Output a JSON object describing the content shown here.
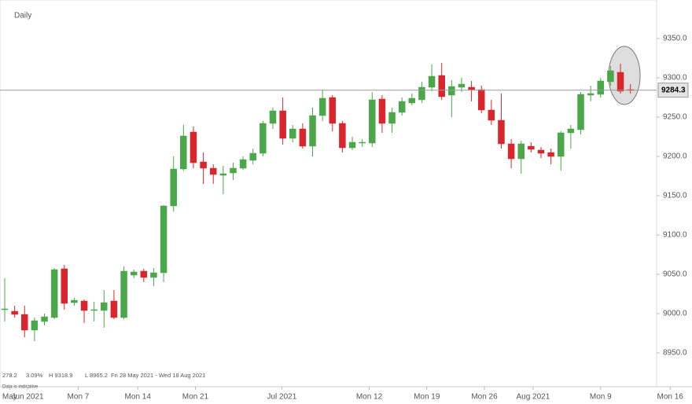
{
  "chart_data": {
    "type": "candlestick",
    "title": "Daily",
    "up_color": "#4aa84a",
    "down_color": "#d9262c",
    "ylim": [
      8907,
      9399
    ],
    "yticks": [
      {
        "value": 9350,
        "label": "9350.0"
      },
      {
        "value": 9300,
        "label": "9300.0"
      },
      {
        "value": 9250,
        "label": "9250.0"
      },
      {
        "value": 9200,
        "label": "9200.0"
      },
      {
        "value": 9150,
        "label": "9150.0"
      },
      {
        "value": 9100,
        "label": "9100.0"
      },
      {
        "value": 9050,
        "label": "9050.0"
      },
      {
        "value": 9000,
        "label": "9000.0"
      },
      {
        "value": 8950,
        "label": "8950.0"
      }
    ],
    "xlim": [
      -0.475,
      65.64
    ],
    "xticks": [
      {
        "value": 0.5,
        "label": "May"
      },
      {
        "value": 2.3,
        "label": "Jun 2021"
      },
      {
        "value": 7.4,
        "label": "Mon 7"
      },
      {
        "value": 13.4,
        "label": "Mon 14"
      },
      {
        "value": 19.2,
        "label": "Mon 21"
      },
      {
        "value": 27.9,
        "label": "Jul 2021"
      },
      {
        "value": 36.7,
        "label": "Mon 12"
      },
      {
        "value": 42.5,
        "label": "Mon 19"
      },
      {
        "value": 48.3,
        "label": "Mon 26"
      },
      {
        "value": 53.2,
        "label": "Aug 2021"
      },
      {
        "value": 60.0,
        "label": "Mon 9"
      },
      {
        "value": 67.0,
        "label": "Mon 16"
      }
    ],
    "open": [
      9005,
      9003,
      8999,
      8979,
      8990,
      8995,
      9057,
      9014,
      9016,
      9004,
      9004,
      9016,
      8995,
      9049,
      9054,
      9046,
      9052,
      9137,
      9184,
      9231,
      9193,
      9185,
      9176,
      9179,
      9185,
      9195,
      9204,
      9242,
      9258,
      9223,
      9235,
      9213,
      9252,
      9275,
      9242,
      9211,
      9217,
      9217,
      9273,
      9242,
      9256,
      9268,
      9272,
      9288,
      9303,
      9278,
      9288,
      9288,
      9285,
      9259,
      9246,
      9216,
      9197,
      9213,
      9208,
      9205,
      9200,
      9230,
      9234,
      9278,
      9279,
      9295,
      9307,
      9285
    ],
    "high": [
      9045,
      9010,
      9010,
      8995,
      9000,
      9058,
      9062,
      9020,
      9018,
      9015,
      9030,
      9030,
      9060,
      9056,
      9057,
      9058,
      9138,
      9200,
      9240,
      9238,
      9205,
      9190,
      9188,
      9192,
      9200,
      9210,
      9245,
      9262,
      9275,
      9240,
      9242,
      9262,
      9285,
      9278,
      9245,
      9225,
      9222,
      9282,
      9278,
      9262,
      9275,
      9280,
      9295,
      9317,
      9319,
      9297,
      9300,
      9296,
      9290,
      9272,
      9280,
      9222,
      9220,
      9218,
      9212,
      9210,
      9232,
      9240,
      9282,
      9290,
      9300,
      9315,
      9318,
      9292
    ],
    "low": [
      8990,
      8995,
      8970,
      8965,
      8985,
      8993,
      9005,
      9010,
      8988,
      8990,
      8982,
      8993,
      8993,
      9045,
      9040,
      9035,
      9040,
      9130,
      9182,
      9185,
      9165,
      9165,
      9152,
      9170,
      9183,
      9190,
      9200,
      9235,
      9215,
      9218,
      9210,
      9200,
      9245,
      9232,
      9205,
      9208,
      9212,
      9212,
      9230,
      9230,
      9252,
      9265,
      9268,
      9283,
      9272,
      9250,
      9282,
      9270,
      9255,
      9240,
      9210,
      9185,
      9178,
      9205,
      9198,
      9190,
      9182,
      9210,
      9228,
      9270,
      9275,
      9290,
      9280,
      9280
    ],
    "close": [
      9006,
      8999,
      8979,
      8991,
      8996,
      9056,
      9013,
      9017,
      9004,
      9005,
      9014,
      8995,
      9054,
      9053,
      9046,
      9052,
      9137,
      9184,
      9226,
      9192,
      9185,
      9177,
      9178,
      9185,
      9196,
      9204,
      9242,
      9258,
      9223,
      9235,
      9213,
      9252,
      9274,
      9242,
      9211,
      9218,
      9218,
      9272,
      9242,
      9256,
      9270,
      9274,
      9288,
      9302,
      9276,
      9289,
      9292,
      9285,
      9259,
      9246,
      9216,
      9197,
      9216,
      9209,
      9204,
      9200,
      9230,
      9235,
      9279,
      9280,
      9296,
      9309,
      9283,
      9284.3
    ],
    "last_price": 9284.3,
    "stats": [
      "278.2",
      "3.09%",
      "H 9318.9",
      "L 8965.2",
      "Fri 28 May 2021 - Wed 18 Aug 2021"
    ],
    "note": "Data is indicative"
  }
}
